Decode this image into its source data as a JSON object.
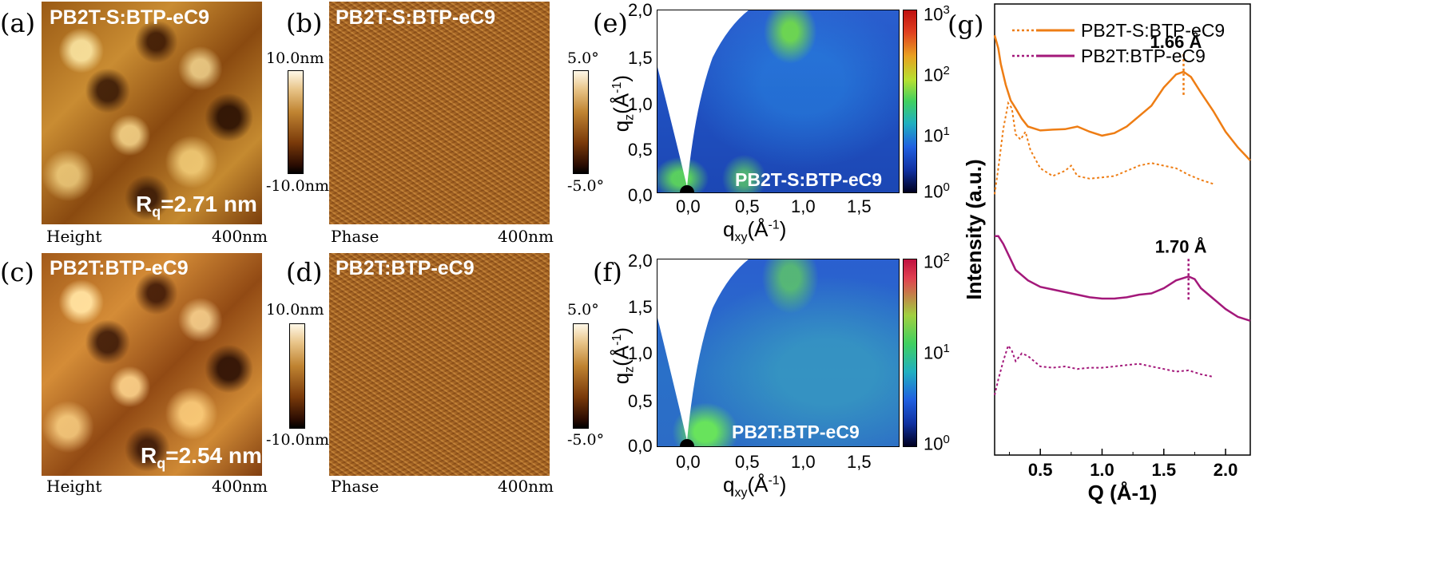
{
  "panels": {
    "a": {
      "letter": "(a)",
      "title": "PB2T-S:BTP-eC9",
      "rq_prefix": "R",
      "rq_sub": "q",
      "rq_value": "=2.71 nm",
      "caption_left": "Height",
      "caption_right": "400nm"
    },
    "b": {
      "letter": "(b)",
      "title": "PB2T-S:BTP-eC9",
      "caption_left": "Phase",
      "caption_right": "400nm"
    },
    "c": {
      "letter": "(c)",
      "title": "PB2T:BTP-eC9",
      "rq_prefix": "R",
      "rq_sub": "q",
      "rq_value": "=2.54 nm",
      "caption_left": "Height",
      "caption_right": "400nm"
    },
    "d": {
      "letter": "(d)",
      "title": "PB2T:BTP-eC9",
      "caption_left": "Phase",
      "caption_right": "400nm"
    },
    "e": {
      "letter": "(e)",
      "inset": "PB2T-S:BTP-eC9"
    },
    "f": {
      "letter": "(f)",
      "inset": "PB2T:BTP-eC9"
    },
    "g": {
      "letter": "(g)"
    }
  },
  "colorbars": {
    "height": {
      "top": "10.0nm",
      "bottom": "-10.0nm"
    },
    "phase": {
      "top": "5.0°",
      "bottom": "-5.0°"
    },
    "giwaxs_e": {
      "labels": [
        "10",
        "10",
        "10",
        "10"
      ],
      "exps": [
        "3",
        "2",
        "1",
        "0"
      ]
    },
    "giwaxs_f": {
      "labels": [
        "10",
        "10",
        "10"
      ],
      "exps": [
        "2",
        "1",
        "0"
      ]
    }
  },
  "giwaxs_axes": {
    "y_ticks": [
      "2,0",
      "1,5",
      "1,0",
      "0,5",
      "0,0"
    ],
    "x_ticks": [
      "0,0",
      "0,5",
      "1,0",
      "1,5"
    ],
    "y_title_main": "q",
    "y_title_sub": "z",
    "y_title_rest": "(Å",
    "y_title_sup": "-1",
    "y_title_close": ")",
    "x_title_main": "q",
    "x_title_sub": "xy",
    "x_title_rest": "(Å",
    "x_title_sup": "-1",
    "x_title_close": ")"
  },
  "chart_data": {
    "type": "line",
    "title": "",
    "xlabel": "Q (Å-1)",
    "ylabel": "Intensity (a.u.)",
    "xlim": [
      0.13,
      2.2
    ],
    "x_ticks": [
      "0.5",
      "1.0",
      "1.5",
      "2.0"
    ],
    "legend": [
      {
        "name": "PB2T-S:BTP-eC9",
        "color": "#ee7d14"
      },
      {
        "name": "PB2T:BTP-eC9",
        "color": "#a3187a"
      }
    ],
    "annotations": [
      {
        "text": "1.66 Å",
        "x": 1.66
      },
      {
        "text": "1.70 Å",
        "x": 1.7
      }
    ],
    "series": [
      {
        "name": "PB2T-S:BTP-eC9",
        "style": "solid",
        "color": "#ee7d14",
        "x": [
          0.13,
          0.16,
          0.18,
          0.22,
          0.26,
          0.3,
          0.35,
          0.4,
          0.5,
          0.6,
          0.7,
          0.8,
          0.9,
          1.0,
          1.1,
          1.2,
          1.3,
          1.4,
          1.5,
          1.6,
          1.66,
          1.72,
          1.8,
          1.9,
          2.0,
          2.1,
          2.2
        ],
        "y": [
          9.6,
          9.1,
          8.5,
          7.7,
          7.1,
          6.8,
          6.4,
          6.1,
          5.95,
          5.98,
          6.0,
          6.1,
          5.9,
          5.75,
          5.85,
          6.1,
          6.5,
          6.9,
          7.6,
          8.1,
          8.2,
          8.0,
          7.4,
          6.7,
          5.9,
          5.3,
          4.8
        ]
      },
      {
        "name": "PB2T-S:BTP-eC9",
        "style": "dotted",
        "color": "#ee7d14",
        "x": [
          0.13,
          0.16,
          0.2,
          0.24,
          0.27,
          0.3,
          0.34,
          0.38,
          0.42,
          0.5,
          0.6,
          0.7,
          0.75,
          0.8,
          0.9,
          1.0,
          1.1,
          1.2,
          1.3,
          1.4,
          1.5,
          1.6,
          1.7,
          1.8,
          1.9
        ],
        "y": [
          3.5,
          4.5,
          6.0,
          7.0,
          6.8,
          5.8,
          5.6,
          5.9,
          5.2,
          4.5,
          4.2,
          4.4,
          4.6,
          4.2,
          4.1,
          4.15,
          4.2,
          4.4,
          4.6,
          4.7,
          4.6,
          4.5,
          4.25,
          4.05,
          3.9
        ]
      },
      {
        "name": "PB2T:BTP-eC9",
        "style": "solid",
        "color": "#a3187a",
        "x": [
          0.13,
          0.16,
          0.2,
          0.25,
          0.3,
          0.4,
          0.5,
          0.6,
          0.7,
          0.8,
          0.9,
          1.0,
          1.1,
          1.2,
          1.3,
          1.4,
          1.5,
          1.6,
          1.7,
          1.75,
          1.8,
          1.9,
          2.0,
          2.1,
          2.2
        ],
        "y": [
          1.9,
          1.9,
          1.6,
          1.1,
          0.6,
          0.2,
          -0.05,
          -0.15,
          -0.25,
          -0.35,
          -0.45,
          -0.5,
          -0.5,
          -0.45,
          -0.35,
          -0.3,
          -0.1,
          0.2,
          0.35,
          0.25,
          -0.1,
          -0.5,
          -0.9,
          -1.2,
          -1.35
        ]
      },
      {
        "name": "PB2T:BTP-eC9",
        "style": "dotted",
        "color": "#a3187a",
        "x": [
          0.13,
          0.16,
          0.2,
          0.24,
          0.27,
          0.3,
          0.35,
          0.4,
          0.5,
          0.6,
          0.7,
          0.8,
          0.9,
          1.0,
          1.1,
          1.2,
          1.3,
          1.4,
          1.5,
          1.6,
          1.7,
          1.8,
          1.9
        ],
        "y": [
          -4.2,
          -3.6,
          -2.9,
          -2.3,
          -2.5,
          -2.9,
          -2.6,
          -2.7,
          -3.1,
          -3.15,
          -3.1,
          -3.2,
          -3.15,
          -3.15,
          -3.1,
          -3.05,
          -3.0,
          -3.1,
          -3.2,
          -3.3,
          -3.25,
          -3.4,
          -3.5
        ]
      }
    ]
  }
}
